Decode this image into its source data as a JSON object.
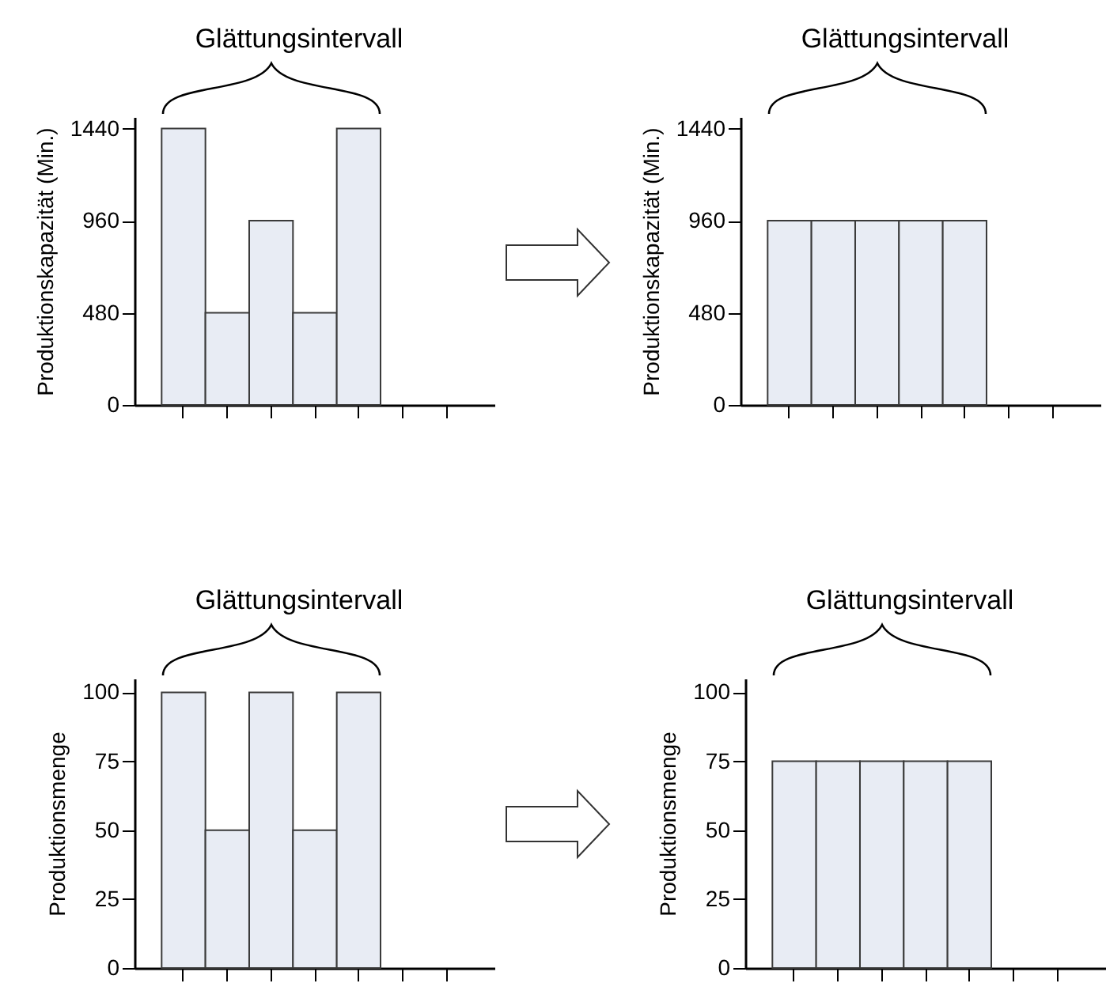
{
  "chart_data": [
    {
      "type": "bar",
      "title": "Glättungsintervall",
      "ylabel": "Produktionskapazität (Min.)",
      "categories": [
        null,
        null,
        null,
        null,
        null,
        null,
        null
      ],
      "values": [
        1440,
        480,
        960,
        480,
        1440,
        null,
        null
      ],
      "color": "#e8ecf4",
      "ylim": [
        0,
        1500
      ],
      "yticks": [
        0,
        480,
        960,
        1440
      ]
    },
    {
      "type": "bar",
      "title": "Glättungsintervall",
      "ylabel": "Produktionskapazität (Min.)",
      "categories": [
        null,
        null,
        null,
        null,
        null,
        null,
        null
      ],
      "values": [
        960,
        960,
        960,
        960,
        960,
        null,
        null
      ],
      "color": "#e8ecf4",
      "ylim": [
        0,
        1500
      ],
      "yticks": [
        0,
        480,
        960,
        1440
      ]
    },
    {
      "type": "bar",
      "title": "Glättungsintervall",
      "ylabel": "Produktionsmenge",
      "categories": [
        null,
        null,
        null,
        null,
        null,
        null,
        null
      ],
      "values": [
        100,
        50,
        100,
        50,
        100,
        null,
        null
      ],
      "color": "#e8ecf4",
      "ylim": [
        0,
        105
      ],
      "yticks": [
        0,
        25,
        50,
        75,
        100
      ]
    },
    {
      "type": "bar",
      "title": "Glättungsintervall",
      "ylabel": "Produktionsmenge",
      "categories": [
        null,
        null,
        null,
        null,
        null,
        null,
        null
      ],
      "values": [
        75,
        75,
        75,
        75,
        75,
        null,
        null
      ],
      "color": "#e8ecf4",
      "ylim": [
        0,
        105
      ],
      "yticks": [
        0,
        25,
        50,
        75,
        100
      ]
    }
  ]
}
